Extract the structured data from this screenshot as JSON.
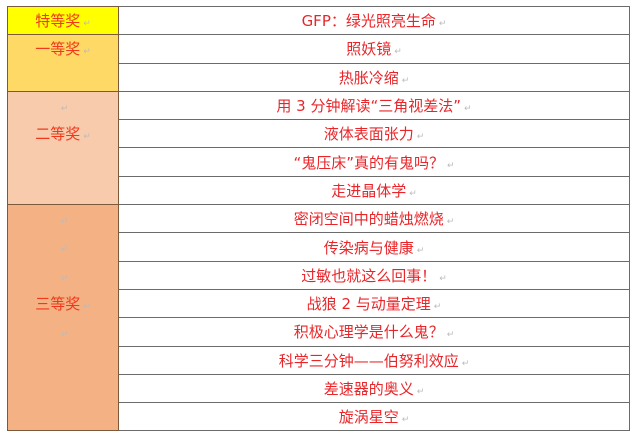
{
  "awards": [
    {
      "label": "特等奖",
      "color": "#ffff00",
      "items": [
        "GFP：绿光照亮生命"
      ]
    },
    {
      "label": "一等奖",
      "color": "#ffd966",
      "items": [
        "照妖镜",
        "热胀冷缩"
      ]
    },
    {
      "label": "二等奖",
      "color": "#f8cbad",
      "items": [
        "用 3 分钟解读“三角视差法”",
        "液体表面张力",
        "“鬼压床”真的有鬼吗？",
        "走进晶体学"
      ]
    },
    {
      "label": "三等奖",
      "color": "#f4b183",
      "items": [
        "密闭空间中的蜡烛燃烧",
        "传染病与健康",
        "过敏也就这么回事！",
        "战狼 2 与动量定理",
        "积极心理学是什么鬼？",
        "科学三分钟——伯努利效应",
        "差速器的奥义",
        "旋涡星空"
      ]
    }
  ]
}
